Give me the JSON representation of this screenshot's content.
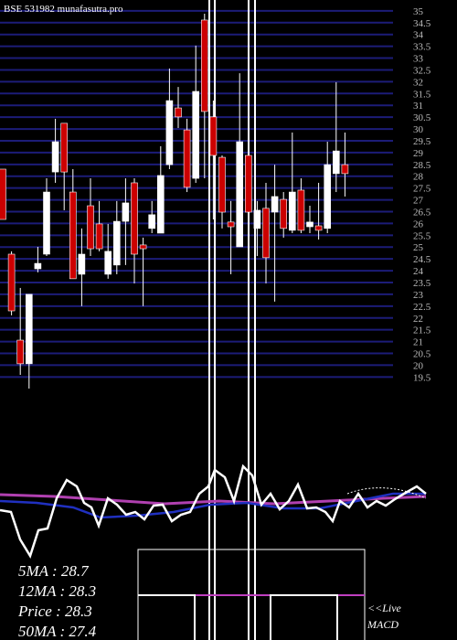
{
  "chart_data": {
    "type": "candlestick",
    "title": "BSE 531982 munafasutra.pro",
    "ylim": [
      19.01,
      35.46
    ],
    "yticks": [
      19.5,
      20,
      20.5,
      21,
      21.5,
      22,
      22.5,
      23,
      23.5,
      24,
      24.5,
      25,
      25.5,
      26,
      26.5,
      27,
      27.5,
      28,
      28.5,
      29,
      29.5,
      30,
      30.5,
      31,
      31.5,
      32,
      32.5,
      33,
      33.5,
      34,
      34.5,
      35
    ],
    "grid": true,
    "up_color": "#ffffff",
    "down_color": "#cc0000",
    "grid_color": "#1c1c78",
    "open": [
      28.3,
      24.7,
      21.06,
      20.06,
      24.08,
      24.7,
      28.18,
      30.24,
      27.33,
      23.85,
      26.75,
      25.98,
      23.85,
      24.24,
      26.09,
      27.72,
      25.09,
      25.79,
      25.59,
      28.49,
      30.89,
      29.96,
      27.91,
      34.61,
      30.51,
      28.8,
      26.06,
      25.01,
      28.88,
      25.79,
      26.64,
      26.48,
      27.02,
      25.71,
      27.41,
      25.86,
      25.9,
      25.79,
      28.11,
      28.49
    ],
    "high": [
      28.3,
      24.82,
      23.27,
      23.0,
      25.01,
      27.91,
      30.43,
      30.24,
      28.3,
      25.79,
      27.91,
      26.95,
      25.98,
      26.95,
      27.91,
      27.91,
      25.4,
      26.95,
      29.27,
      32.56,
      31.78,
      30.43,
      33.53,
      34.88,
      31.2,
      28.88,
      26.95,
      32.36,
      29.07,
      26.95,
      27.72,
      28.49,
      27.33,
      29.85,
      27.91,
      26.75,
      27.72,
      29.46,
      31.98,
      29.85
    ],
    "low": [
      26.17,
      22.11,
      19.59,
      19.01,
      23.93,
      24.62,
      27.72,
      26.56,
      23.66,
      22.5,
      24.62,
      24.82,
      23.66,
      23.85,
      24.24,
      23.46,
      22.5,
      25.59,
      25.59,
      28.3,
      30.04,
      27.33,
      27.72,
      27.91,
      26.17,
      25.79,
      23.85,
      25.01,
      25.4,
      24.62,
      23.46,
      22.69,
      25.4,
      25.59,
      25.59,
      25.59,
      25.32,
      25.59,
      27.33,
      27.14
    ],
    "close": [
      26.17,
      22.3,
      20.06,
      23.0,
      24.31,
      27.33,
      29.46,
      28.18,
      23.66,
      24.7,
      24.93,
      24.93,
      24.82,
      26.09,
      26.87,
      24.7,
      24.93,
      26.37,
      28.03,
      31.2,
      30.51,
      27.53,
      31.59,
      30.74,
      28.88,
      26.48,
      25.86,
      29.46,
      26.48,
      26.56,
      24.55,
      27.14,
      25.79,
      27.33,
      25.71,
      26.06,
      25.71,
      28.49,
      29.07,
      28.11
    ],
    "indicators": [
      "5MA : 28.7",
      "12MA : 28.3",
      "Price  : 28.3",
      "50MA : 27.4"
    ],
    "live_label": "<<Live",
    "panel_label": "MACD"
  }
}
